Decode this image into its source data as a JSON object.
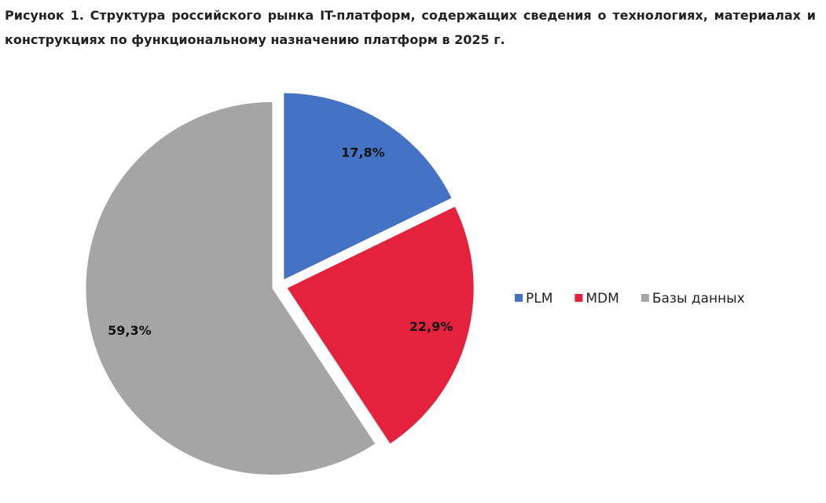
{
  "chart_data": {
    "type": "pie",
    "title": "Рисунок 1. Структура российского рынка IT-платформ, содержащих сведения о технологиях, материалах и конструкциях по функциональному назначению платформ в 2025 г.",
    "categories": [
      "PLM",
      "MDM",
      "Базы данных"
    ],
    "values": [
      17.8,
      22.9,
      59.3
    ],
    "value_labels": [
      "17,8%",
      "22,9%",
      "59,3%"
    ],
    "colors": [
      "#4472c4",
      "#e4223e",
      "#a5a5a5"
    ],
    "legend": "right"
  }
}
